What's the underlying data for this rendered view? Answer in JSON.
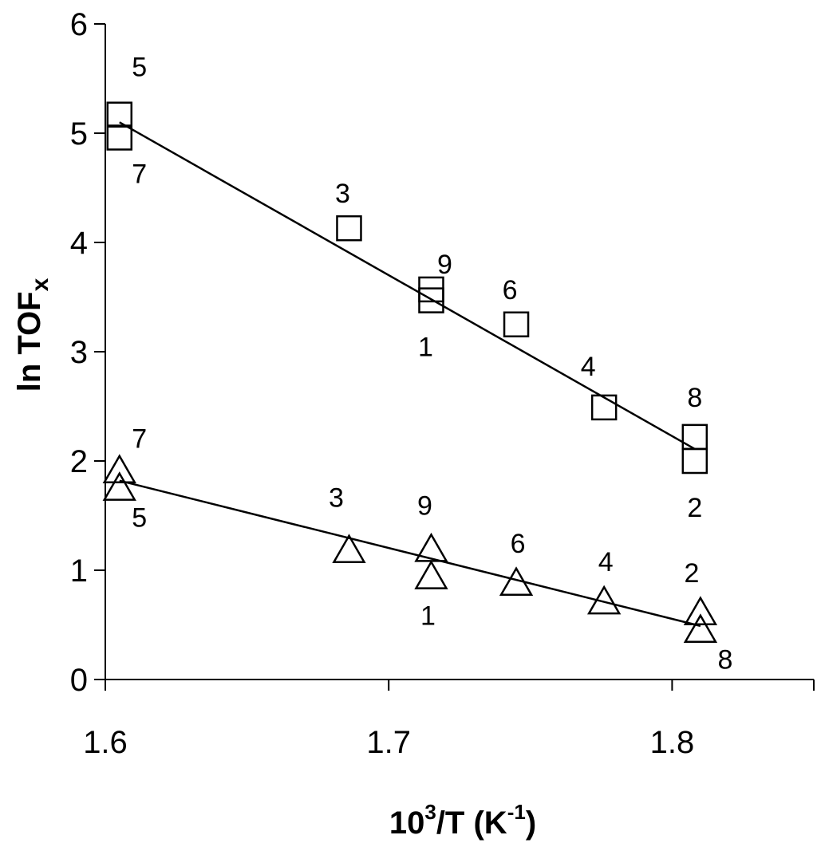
{
  "chart_data": {
    "type": "scatter",
    "xlabel": {
      "main": "10",
      "sup1": "3",
      "mid": "/T (K",
      "sup2": "-1",
      "end": ")"
    },
    "ylabel": {
      "main": "ln TOF",
      "sub": "x"
    },
    "xlim": [
      1.6,
      1.85
    ],
    "ylim": [
      0,
      6
    ],
    "xticks": [
      1.6,
      1.7,
      1.8
    ],
    "xtick_labels": [
      "1.6",
      "1.7",
      "1.8"
    ],
    "yticks": [
      0,
      1,
      2,
      3,
      4,
      5,
      6
    ],
    "ytick_labels": [
      "0",
      "1",
      "2",
      "3",
      "4",
      "5",
      "6"
    ],
    "grid": false,
    "series": [
      {
        "marker": "square",
        "points": [
          {
            "label": "5",
            "x": 1.605,
            "y": 5.17
          },
          {
            "label": "7",
            "x": 1.605,
            "y": 4.96
          },
          {
            "label": "3",
            "x": 1.686,
            "y": 4.13
          },
          {
            "label": "9",
            "x": 1.715,
            "y": 3.57
          },
          {
            "label": "1",
            "x": 1.715,
            "y": 3.47
          },
          {
            "label": "6",
            "x": 1.745,
            "y": 3.25
          },
          {
            "label": "4",
            "x": 1.776,
            "y": 2.49
          },
          {
            "label": "8",
            "x": 1.808,
            "y": 2.22
          },
          {
            "label": "2",
            "x": 1.808,
            "y": 2.0
          }
        ],
        "fit_line": {
          "x": [
            1.605,
            1.808
          ],
          "y": [
            5.1,
            2.11
          ]
        }
      },
      {
        "marker": "triangle",
        "points": [
          {
            "label": "7",
            "x": 1.605,
            "y": 1.9
          },
          {
            "label": "5",
            "x": 1.605,
            "y": 1.74
          },
          {
            "label": "3",
            "x": 1.686,
            "y": 1.17
          },
          {
            "label": "9",
            "x": 1.715,
            "y": 1.18
          },
          {
            "label": "1",
            "x": 1.715,
            "y": 0.93
          },
          {
            "label": "6",
            "x": 1.745,
            "y": 0.87
          },
          {
            "label": "4",
            "x": 1.776,
            "y": 0.7
          },
          {
            "label": "2",
            "x": 1.81,
            "y": 0.6
          },
          {
            "label": "8",
            "x": 1.81,
            "y": 0.44
          }
        ],
        "fit_line": {
          "x": [
            1.605,
            1.81
          ],
          "y": [
            1.82,
            0.49
          ]
        }
      }
    ]
  }
}
